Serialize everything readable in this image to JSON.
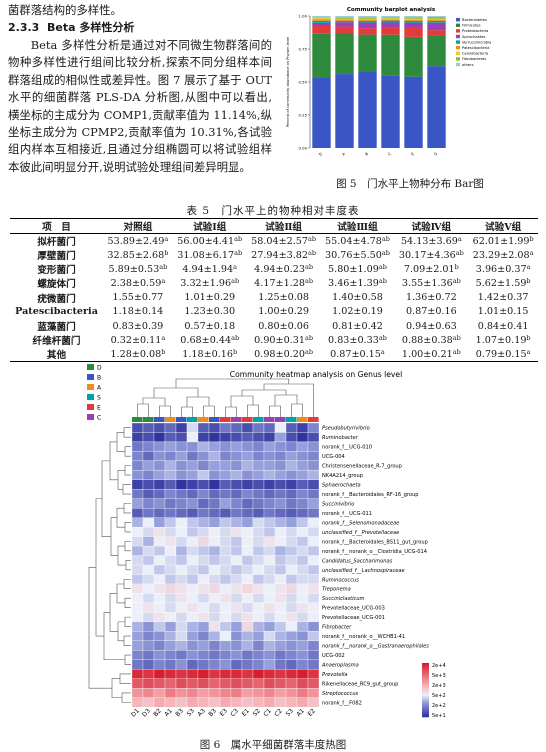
{
  "intro_line": "菌群落结构的多样性。",
  "section": {
    "number": "2.3.3",
    "title": "Beta 多样性分析"
  },
  "paragraph": "Beta 多样性分析是通过对不同微生物群落间的物种多样性进行组间比较分析,探索不同分组样本间群落组成的相似性或差异性。图 7 展示了基于 OUT 水平的细菌群落 PLS-DA 分析图,从图中可以看出,横坐标的主成分为 COMP1,贡献率值为 11.14%,纵坐标主成分为 CPMP2,贡献率值为 10.31%,各试验组内样本互相接近,且通过分组椭圆可以将试验组样本彼此间明显分开,说明试验处理组间差异明显。",
  "figure5": {
    "caption": "图 5　门水平上物种分布 Bar图",
    "chart_data": {
      "type": "bar",
      "stacked": true,
      "title": "Community barplot analysis",
      "ylabel": "Percent of community abundance on Phylum level",
      "ylim": [
        0,
        1
      ],
      "yticks": [
        "0.00",
        "0.25",
        "0.50",
        "0.75",
        "1.00"
      ],
      "categories": [
        "D",
        "A",
        "B",
        "C",
        "E",
        "S"
      ],
      "series": [
        {
          "name": "Bacteroidetes",
          "color": "#3a56c4",
          "values": [
            0.539,
            0.56,
            0.58,
            0.553,
            0.541,
            0.62
          ]
        },
        {
          "name": "Firmicutes",
          "color": "#2e8b3e",
          "values": [
            0.329,
            0.311,
            0.279,
            0.308,
            0.302,
            0.233
          ]
        },
        {
          "name": "Proteobacteria",
          "color": "#e23b3b",
          "values": [
            0.059,
            0.049,
            0.049,
            0.058,
            0.071,
            0.04
          ]
        },
        {
          "name": "Spirochaetes",
          "color": "#9b3fb5",
          "values": [
            0.024,
            0.033,
            0.042,
            0.035,
            0.036,
            0.056
          ]
        },
        {
          "name": "Verrucomicrobia",
          "color": "#00a3a3",
          "values": [
            0.016,
            0.01,
            0.013,
            0.014,
            0.014,
            0.014
          ]
        },
        {
          "name": "Patescibacteria",
          "color": "#f08c1a",
          "values": [
            0.012,
            0.012,
            0.01,
            0.01,
            0.009,
            0.01
          ]
        },
        {
          "name": "Cyanobacteria",
          "color": "#e8d31a",
          "values": [
            0.008,
            0.006,
            0.008,
            0.008,
            0.009,
            0.008
          ]
        },
        {
          "name": "Fibrobacteres",
          "color": "#7ac143",
          "values": [
            0.003,
            0.007,
            0.009,
            0.008,
            0.009,
            0.011
          ]
        },
        {
          "name": "others",
          "color": "#9ecae1",
          "values": [
            0.013,
            0.012,
            0.01,
            0.009,
            0.01,
            0.008
          ]
        }
      ]
    }
  },
  "table5": {
    "caption": "表 5　门水平上的物种相对丰度表",
    "headers": [
      "项　目",
      "对照组",
      "试验Ⅰ组",
      "试验Ⅱ组",
      "试验Ⅲ组",
      "试验Ⅳ组",
      "试验Ⅴ组"
    ],
    "rows": [
      {
        "name": "拟杆菌门",
        "cells": [
          [
            "53.89±2.49",
            "a"
          ],
          [
            "56.00±4.41",
            "ab"
          ],
          [
            "58.04±2.57",
            "ab"
          ],
          [
            "55.04±4.78",
            "ab"
          ],
          [
            "54.13±3.69",
            "a"
          ],
          [
            "62.01±1.99",
            "b"
          ]
        ]
      },
      {
        "name": "厚壁菌门",
        "cells": [
          [
            "32.85±2.68",
            "b"
          ],
          [
            "31.08±6.17",
            "ab"
          ],
          [
            "27.94±3.82",
            "ab"
          ],
          [
            "30.76±5.50",
            "ab"
          ],
          [
            "30.17±4.36",
            "ab"
          ],
          [
            "23.29±2.08",
            "a"
          ]
        ]
      },
      {
        "name": "变形菌门",
        "cells": [
          [
            "5.89±0.53",
            "ab"
          ],
          [
            "4.94±1.94",
            "a"
          ],
          [
            "4.94±0.23",
            "ab"
          ],
          [
            "5.80±1.09",
            "ab"
          ],
          [
            "7.09±2.01",
            "b"
          ],
          [
            "3.96±0.37",
            "a"
          ]
        ]
      },
      {
        "name": "螺旋体门",
        "cells": [
          [
            "2.38±0.59",
            "a"
          ],
          [
            "3.32±1.96",
            "ab"
          ],
          [
            "4.17±1.28",
            "ab"
          ],
          [
            "3.46±1.39",
            "ab"
          ],
          [
            "3.55±1.36",
            "ab"
          ],
          [
            "5.62±1.59",
            "b"
          ]
        ]
      },
      {
        "name": "疣微菌门",
        "cells": [
          [
            "1.55±0.77",
            ""
          ],
          [
            "1.01±0.29",
            ""
          ],
          [
            "1.25±0.08",
            ""
          ],
          [
            "1.40±0.58",
            ""
          ],
          [
            "1.36±0.72",
            ""
          ],
          [
            "1.42±0.37",
            ""
          ]
        ]
      },
      {
        "name": "Patescibacteria",
        "cells": [
          [
            "1.18±0.14",
            ""
          ],
          [
            "1.23±0.30",
            ""
          ],
          [
            "1.00±0.29",
            ""
          ],
          [
            "1.02±0.19",
            ""
          ],
          [
            "0.87±0.16",
            ""
          ],
          [
            "1.01±0.15",
            ""
          ]
        ]
      },
      {
        "name": "蓝藻菌门",
        "cells": [
          [
            "0.83±0.39",
            ""
          ],
          [
            "0.57±0.18",
            ""
          ],
          [
            "0.80±0.06",
            ""
          ],
          [
            "0.81±0.42",
            ""
          ],
          [
            "0.94±0.63",
            ""
          ],
          [
            "0.84±0.41",
            ""
          ]
        ]
      },
      {
        "name": "纤维杆菌门",
        "cells": [
          [
            "0.32±0.11",
            "a"
          ],
          [
            "0.68±0.44",
            "ab"
          ],
          [
            "0.90±0.31",
            "ab"
          ],
          [
            "0.83±0.33",
            "ab"
          ],
          [
            "0.88±0.38",
            "ab"
          ],
          [
            "1.07±0.19",
            "b"
          ]
        ]
      },
      {
        "name": "其他",
        "cells": [
          [
            "1.28±0.08",
            "b"
          ],
          [
            "1.18±0.16",
            "b"
          ],
          [
            "0.98±0.20",
            "ab"
          ],
          [
            "0.87±0.15",
            "a"
          ],
          [
            "1.00±0.21",
            "ab"
          ],
          [
            "0.79±0.15",
            "a"
          ]
        ]
      }
    ]
  },
  "figure6": {
    "caption": "图 6　属水平细菌群落丰度热图",
    "chart_data": {
      "type": "heatmap",
      "title": "Community heatmap analysis on Genus level",
      "group_legend": [
        {
          "name": "D",
          "color": "#2e8b3e"
        },
        {
          "name": "B",
          "color": "#3a56c4"
        },
        {
          "name": "A",
          "color": "#f08c1a"
        },
        {
          "name": "S",
          "color": "#00a3a3"
        },
        {
          "name": "E",
          "color": "#e23b3b"
        },
        {
          "name": "C",
          "color": "#9b3fb5"
        }
      ],
      "columns": [
        "D1",
        "D3",
        "B2",
        "A1",
        "B3",
        "S3",
        "A3",
        "B3",
        "E3",
        "C3",
        "E1",
        "S2",
        "C1",
        "C2",
        "S3",
        "A1",
        "E2"
      ],
      "column_groups": [
        "D",
        "D",
        "B",
        "A",
        "B",
        "S",
        "A",
        "B",
        "E",
        "C",
        "E",
        "S",
        "C",
        "C",
        "S",
        "A",
        "E"
      ],
      "rows": [
        "Pseudobutyrivibrio",
        "Ruminobacter",
        "norank_f__UCG-010",
        "UCG-004",
        "Christensenellaceae_R-7_group",
        "NK4A214_group",
        "Sphaerochaeta",
        "norank_f__Bacteroidales_RF-16_group",
        "Succinivibrio",
        "norank_f__UCG-011",
        "norank_f__Selenomonadaceae",
        "unclassified_f__Prevotellaceae",
        "norank_f__Bacteroidales_BS11_gut_group",
        "norank_f__norank_o__Clostridia_UCG-014",
        "Candidatus_Saccharimonas",
        "unclassified_f__Lachnospiraceae",
        "Ruminococcus",
        "Treponema",
        "Succiniclasticum",
        "Prevotellaceae_UCG-003",
        "Prevotellaceae_UCG-001",
        "Fibrobacter",
        "norank_f__norank_o__WCHB1-41",
        "norank_f__norank_o__Gastranaerophilales",
        "UCG-002",
        "Anaeroplasma",
        "Prevotella",
        "Rikenellaceae_RC9_gut_group",
        "Streptococcus",
        "norank_f__F082"
      ],
      "colorbar": [
        "2e+4",
        "5e+3",
        "2e+3",
        "5e+2",
        "2e+2",
        "5e+1"
      ],
      "values": [
        [
          1.6,
          1.7,
          1.6,
          1.8,
          1.5,
          2.5,
          1.7,
          1.6,
          1.9,
          1.8,
          1.6,
          1.9,
          1.8,
          2.6,
          1.7,
          1.5,
          2.0
        ],
        [
          1.5,
          1.6,
          1.4,
          1.7,
          1.6,
          2.6,
          1.5,
          1.4,
          1.5,
          1.6,
          1.7,
          1.6,
          1.5,
          2.2,
          1.6,
          1.4,
          1.6
        ],
        [
          1.9,
          2.0,
          2.1,
          2.2,
          2.1,
          2.1,
          2.3,
          2.2,
          2.1,
          2.2,
          2.1,
          2.0,
          2.2,
          2.1,
          2.0,
          2.2,
          2.1
        ],
        [
          2.0,
          1.8,
          2.1,
          2.0,
          2.2,
          1.9,
          2.1,
          2.3,
          2.0,
          2.1,
          2.2,
          2.0,
          2.1,
          2.0,
          2.2,
          2.1,
          2.0
        ],
        [
          2.0,
          2.2,
          2.1,
          2.3,
          2.1,
          2.2,
          2.0,
          2.2,
          2.2,
          2.1,
          2.3,
          2.2,
          2.2,
          2.1,
          2.3,
          2.2,
          2.1
        ],
        [
          2.1,
          2.0,
          2.2,
          2.3,
          2.1,
          2.2,
          2.4,
          2.1,
          2.2,
          2.3,
          2.1,
          2.2,
          2.3,
          2.2,
          2.1,
          2.2,
          2.3
        ],
        [
          1.5,
          1.6,
          1.5,
          1.7,
          1.4,
          1.5,
          1.6,
          1.4,
          1.7,
          1.6,
          1.5,
          1.6,
          1.5,
          1.6,
          1.5,
          1.7,
          1.6
        ],
        [
          1.9,
          1.7,
          1.8,
          2.0,
          1.9,
          1.8,
          2.0,
          1.8,
          1.9,
          1.8,
          2.0,
          1.9,
          1.8,
          1.9,
          1.8,
          2.0,
          1.9
        ],
        [
          2.2,
          2.0,
          2.1,
          1.9,
          2.0,
          2.1,
          1.8,
          1.9,
          2.2,
          2.0,
          1.8,
          1.9,
          2.0,
          2.1,
          1.9,
          2.0,
          2.2
        ],
        [
          1.7,
          1.9,
          1.8,
          1.9,
          1.8,
          1.7,
          1.9,
          1.8,
          1.7,
          1.9,
          1.8,
          1.7,
          1.9,
          1.8,
          1.7,
          1.8,
          1.9
        ],
        [
          2.3,
          2.6,
          2.2,
          2.4,
          2.6,
          2.4,
          2.3,
          2.2,
          2.4,
          2.3,
          2.2,
          2.5,
          2.4,
          2.3,
          2.2,
          2.4,
          2.6
        ],
        [
          2.6,
          2.5,
          2.7,
          2.5,
          2.6,
          2.4,
          2.5,
          2.6,
          2.5,
          2.7,
          2.6,
          2.5,
          2.4,
          2.6,
          2.5,
          2.6,
          2.5
        ],
        [
          2.5,
          2.3,
          2.6,
          2.7,
          2.5,
          2.6,
          2.8,
          2.6,
          2.5,
          2.4,
          2.6,
          2.5,
          2.7,
          2.6,
          2.5,
          2.4,
          2.6
        ],
        [
          2.3,
          2.5,
          2.4,
          2.6,
          2.3,
          2.5,
          2.4,
          2.3,
          2.5,
          2.4,
          2.6,
          2.4,
          2.5,
          2.3,
          2.4,
          2.5,
          2.4
        ],
        [
          2.5,
          2.4,
          2.6,
          2.5,
          2.4,
          2.6,
          2.5,
          2.4,
          2.5,
          2.6,
          2.4,
          2.5,
          2.6,
          2.4,
          2.5,
          2.4,
          2.6
        ],
        [
          2.5,
          2.6,
          2.4,
          2.5,
          2.6,
          2.5,
          2.4,
          2.6,
          2.5,
          2.4,
          2.5,
          2.6,
          2.5,
          2.4,
          2.6,
          2.5,
          2.4
        ],
        [
          2.4,
          2.5,
          2.6,
          2.4,
          2.5,
          2.4,
          2.6,
          2.5,
          2.4,
          2.5,
          2.6,
          2.4,
          2.5,
          2.6,
          2.4,
          2.5,
          2.5
        ],
        [
          2.7,
          2.6,
          2.7,
          2.8,
          2.7,
          2.6,
          2.7,
          2.8,
          2.6,
          2.7,
          2.8,
          2.7,
          2.6,
          2.7,
          2.8,
          2.6,
          2.7
        ],
        [
          2.6,
          2.5,
          2.6,
          2.5,
          2.7,
          2.6,
          2.5,
          2.6,
          2.7,
          2.5,
          2.6,
          2.5,
          2.6,
          2.7,
          2.5,
          2.6,
          2.5
        ],
        [
          2.6,
          2.7,
          2.6,
          2.5,
          2.6,
          2.7,
          2.6,
          2.5,
          2.6,
          2.7,
          2.5,
          2.6,
          2.7,
          2.6,
          2.5,
          2.7,
          2.6
        ],
        [
          2.6,
          2.5,
          2.7,
          2.6,
          2.5,
          2.6,
          2.7,
          2.5,
          2.6,
          2.5,
          2.7,
          2.6,
          2.5,
          2.6,
          2.7,
          2.5,
          2.6
        ],
        [
          2.3,
          2.1,
          2.4,
          2.2,
          2.5,
          2.3,
          2.2,
          2.7,
          2.4,
          2.2,
          2.8,
          2.3,
          2.2,
          2.4,
          2.6,
          2.3,
          2.1
        ],
        [
          2.2,
          2.0,
          2.1,
          2.3,
          2.5,
          2.2,
          2.0,
          2.3,
          2.6,
          2.1,
          2.3,
          2.2,
          2.5,
          2.3,
          2.2,
          2.1,
          2.4
        ],
        [
          2.2,
          2.1,
          2.0,
          2.2,
          2.3,
          2.1,
          2.2,
          2.0,
          2.2,
          2.1,
          2.3,
          2.0,
          2.3,
          2.2,
          2.1,
          2.2,
          2.0
        ],
        [
          2.0,
          1.9,
          2.1,
          2.0,
          1.9,
          2.1,
          2.0,
          1.9,
          2.0,
          2.1,
          1.9,
          2.0,
          2.1,
          1.9,
          2.0,
          2.1,
          1.9
        ],
        [
          1.9,
          1.8,
          2.0,
          1.9,
          2.1,
          1.8,
          1.9,
          2.0,
          2.1,
          1.8,
          1.9,
          2.0,
          2.2,
          1.9,
          1.8,
          2.0,
          1.9
        ],
        [
          4.3,
          4.2,
          4.4,
          4.3,
          4.2,
          4.3,
          4.4,
          4.2,
          4.3,
          4.3,
          4.2,
          4.4,
          4.3,
          4.2,
          4.3,
          4.4,
          4.2
        ],
        [
          3.9,
          4.0,
          3.9,
          3.8,
          4.0,
          3.9,
          4.0,
          3.8,
          3.9,
          4.0,
          3.9,
          3.8,
          4.0,
          3.9,
          3.8,
          4.0,
          3.9
        ],
        [
          3.4,
          3.5,
          3.3,
          3.6,
          3.4,
          3.5,
          3.3,
          3.4,
          3.5,
          3.6,
          3.3,
          3.4,
          3.5,
          3.3,
          3.4,
          3.6,
          3.4
        ],
        [
          3.1,
          3.0,
          3.2,
          3.1,
          3.0,
          3.2,
          3.1,
          3.0,
          3.2,
          3.1,
          3.0,
          3.1,
          3.2,
          3.0,
          3.1,
          3.2,
          3.0
        ]
      ]
    }
  }
}
